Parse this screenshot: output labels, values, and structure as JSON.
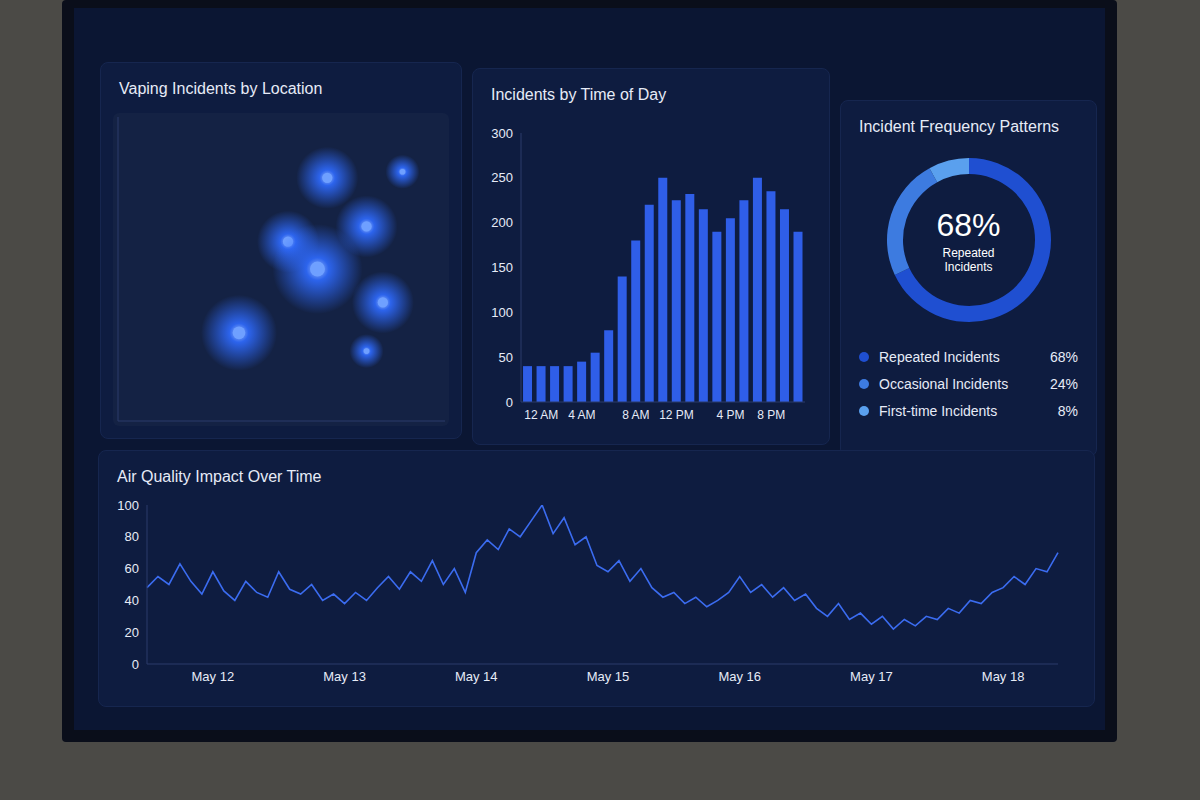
{
  "chart_data": [
    {
      "type": "scatter",
      "title": "Vaping Incidents by Location",
      "x": [
        64,
        87,
        52,
        76,
        61,
        81,
        37,
        76
      ],
      "values": [
        80,
        82,
        59,
        64,
        50,
        39,
        29,
        23
      ],
      "sizes": [
        3,
        1,
        3,
        3,
        5,
        3,
        4,
        1
      ],
      "xlim": [
        0,
        100
      ],
      "ylim": [
        0,
        100
      ],
      "tick_labels": false,
      "color": "#2f6bff"
    },
    {
      "type": "bar",
      "title": "Incidents by Time of Day",
      "categories": [
        null,
        "12 AM",
        null,
        null,
        "4 AM",
        null,
        null,
        null,
        "8 AM",
        null,
        null,
        "12 PM",
        null,
        null,
        null,
        "4 PM",
        null,
        null,
        "8 PM",
        null,
        null
      ],
      "values": [
        40,
        40,
        40,
        40,
        45,
        55,
        80,
        140,
        180,
        220,
        250,
        225,
        232,
        215,
        190,
        205,
        225,
        250,
        235,
        215,
        190
      ],
      "ylim": [
        0,
        300
      ],
      "yticks": [
        0,
        50,
        100,
        150,
        200,
        250,
        300
      ],
      "grid": false,
      "color": "#2f5ee8"
    },
    {
      "type": "pie",
      "title": "Incident Frequency Patterns",
      "categories": [
        "Repeated Incidents",
        "Occasional Incidents",
        "First-time Incidents"
      ],
      "values": [
        68,
        24,
        8
      ],
      "value_labels": [
        "68%",
        "24%",
        "8%"
      ],
      "colors": [
        "#1f4fd1",
        "#3d7be0",
        "#5aa0ee"
      ],
      "legend": "bottom"
    },
    {
      "type": "line",
      "title": "Air Quality Impact Over Time",
      "categories": [
        null,
        null,
        null,
        null,
        null,
        null,
        "May 12",
        null,
        null,
        null,
        null,
        null,
        null,
        null,
        null,
        null,
        null,
        null,
        "May 13",
        null,
        null,
        null,
        null,
        null,
        null,
        null,
        null,
        null,
        null,
        null,
        "May 14",
        null,
        null,
        null,
        null,
        null,
        null,
        null,
        null,
        null,
        null,
        null,
        "May 15",
        null,
        null,
        null,
        null,
        null,
        null,
        null,
        null,
        null,
        null,
        null,
        "May 16",
        null,
        null,
        null,
        null,
        null,
        null,
        null,
        null,
        null,
        null,
        null,
        "May 17",
        null,
        null,
        null,
        null,
        null,
        null,
        null,
        null,
        null,
        null,
        null,
        "May 18",
        null,
        null,
        null,
        null,
        null
      ],
      "values": [
        48,
        55,
        50,
        63,
        52,
        44,
        58,
        46,
        40,
        52,
        45,
        42,
        58,
        47,
        44,
        50,
        40,
        44,
        38,
        45,
        40,
        48,
        55,
        47,
        58,
        52,
        65,
        50,
        60,
        45,
        70,
        78,
        72,
        85,
        80,
        90,
        100,
        82,
        92,
        75,
        80,
        62,
        58,
        65,
        52,
        60,
        48,
        42,
        45,
        38,
        42,
        36,
        40,
        45,
        55,
        45,
        50,
        42,
        48,
        40,
        44,
        35,
        30,
        38,
        28,
        32,
        25,
        30,
        22,
        28,
        24,
        30,
        28,
        35,
        32,
        40,
        38,
        45,
        48,
        55,
        50,
        60,
        58,
        70
      ],
      "ylim": [
        0,
        100
      ],
      "yticks": [
        0,
        20,
        40,
        60,
        80,
        100
      ],
      "grid": false,
      "color": "#3b6cf0"
    }
  ]
}
